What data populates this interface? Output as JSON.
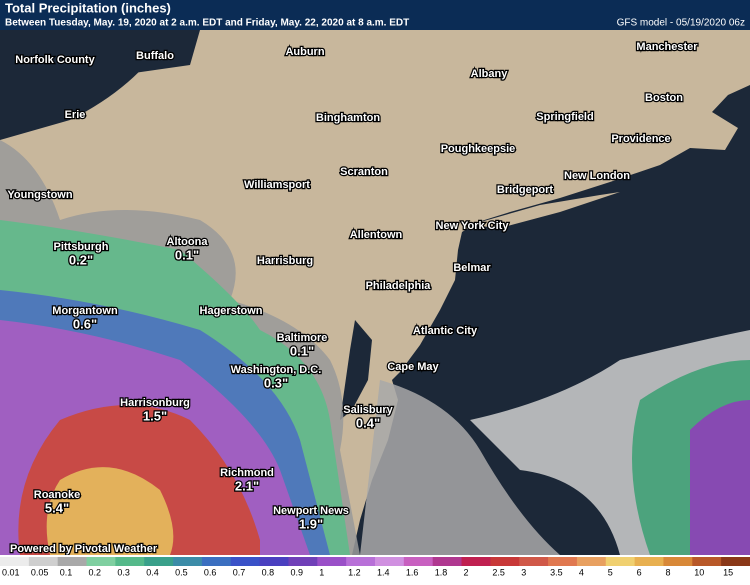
{
  "header": {
    "title": "Total Precipitation (inches)",
    "subtitle": "Between Tuesday, May. 19, 2020 at 2 a.m. EDT and Friday, May. 22, 2020 at 8 a.m. EDT",
    "model": "GFS model - 05/19/2020 06z"
  },
  "cities": [
    {
      "name": "Norfolk County"
    },
    {
      "name": "Buffalo"
    },
    {
      "name": "Auburn"
    },
    {
      "name": "Manchester"
    },
    {
      "name": "Albany"
    },
    {
      "name": "Boston"
    },
    {
      "name": "Erie"
    },
    {
      "name": "Binghamton"
    },
    {
      "name": "Springfield"
    },
    {
      "name": "Providence"
    },
    {
      "name": "Poughkeepsie"
    },
    {
      "name": "New London"
    },
    {
      "name": "Scranton"
    },
    {
      "name": "Williamsport"
    },
    {
      "name": "Bridgeport"
    },
    {
      "name": "Youngstown"
    },
    {
      "name": "New York City"
    },
    {
      "name": "Allentown"
    },
    {
      "name": "Altoona",
      "amount": "0.1\""
    },
    {
      "name": "Pittsburgh",
      "amount": "0.2\""
    },
    {
      "name": "Harrisburg"
    },
    {
      "name": "Belmar"
    },
    {
      "name": "Philadelphia"
    },
    {
      "name": "Hagerstown"
    },
    {
      "name": "Morgantown",
      "amount": "0.6\""
    },
    {
      "name": "Atlantic City"
    },
    {
      "name": "Baltimore",
      "amount": "0.1\""
    },
    {
      "name": "Cape May"
    },
    {
      "name": "Washington, D.C.",
      "amount": "0.3\""
    },
    {
      "name": "Harrisonburg",
      "amount": "1.5\""
    },
    {
      "name": "Salisbury",
      "amount": "0.4\""
    },
    {
      "name": "Richmond",
      "amount": "2.1\""
    },
    {
      "name": "Roanoke",
      "amount": "5.4\""
    },
    {
      "name": "Newport News",
      "amount": "1.9\""
    }
  ],
  "credit": "Powered by Pivotal Weather",
  "legend": {
    "ticks": [
      0.01,
      0.05,
      0.1,
      0.2,
      0.3,
      0.4,
      0.5,
      0.6,
      0.7,
      0.8,
      0.9,
      1,
      1.2,
      1.4,
      1.6,
      1.8,
      2,
      2.5,
      3,
      3.5,
      4,
      5,
      6,
      8,
      10,
      15
    ],
    "colors": [
      "#ececec",
      "#cfcfcf",
      "#a9a9a9",
      "#7fcfa0",
      "#55b98a",
      "#3aa08a",
      "#3c8ca8",
      "#3b6fc0",
      "#3a52c8",
      "#4a40c0",
      "#7040b8",
      "#9a50c8",
      "#b870d8",
      "#d090e0",
      "#c860c0",
      "#b03890",
      "#c02050",
      "#c83838",
      "#d05848",
      "#e07850",
      "#e8a060",
      "#f0d070",
      "#e8b050",
      "#d88838",
      "#b85828",
      "#8a3818"
    ]
  }
}
